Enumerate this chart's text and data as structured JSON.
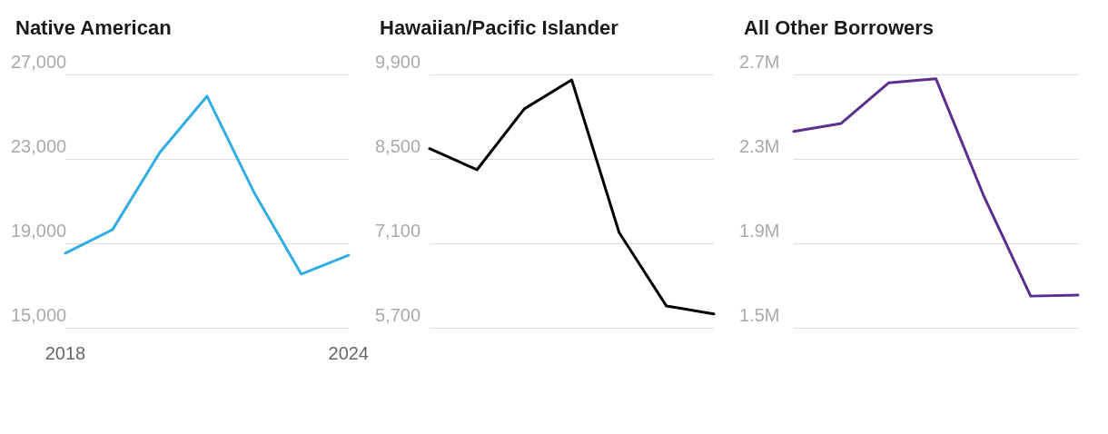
{
  "chart_data": [
    {
      "type": "line",
      "title": "Native American",
      "x": [
        2018,
        2019,
        2020,
        2021,
        2022,
        2023,
        2024
      ],
      "xlim": [
        2018,
        2024
      ],
      "xticks": [
        2018,
        2024
      ],
      "series": [
        {
          "color": "#31ade4",
          "values": [
            18530,
            19650,
            23300,
            25970,
            21400,
            17540,
            18440
          ]
        }
      ],
      "ylim": [
        15000,
        27000
      ],
      "yticks": [
        {
          "value": 15000,
          "label": "15,000"
        },
        {
          "value": 19000,
          "label": "19,000"
        },
        {
          "value": 23000,
          "label": "23,000"
        },
        {
          "value": 27000,
          "label": "27,000"
        }
      ],
      "grid": "y"
    },
    {
      "type": "line",
      "title": "Hawaiian/Pacific Islander",
      "categories": [
        null,
        null,
        null,
        null,
        null,
        null,
        null
      ],
      "tick_labels": "y",
      "series": [
        {
          "color": "#000000",
          "values": [
            8670,
            8320,
            9330,
            9810,
            7280,
            6060,
            5930
          ]
        }
      ],
      "ylim": [
        5700,
        9900
      ],
      "yticks": [
        {
          "value": 5700,
          "label": "5,700"
        },
        {
          "value": 7100,
          "label": "7,100"
        },
        {
          "value": 8500,
          "label": "8,500"
        },
        {
          "value": 9900,
          "label": "9,900"
        }
      ],
      "grid": "y"
    },
    {
      "type": "line",
      "title": "All Other Borrowers",
      "categories": [
        null,
        null,
        null,
        null,
        null,
        null,
        null
      ],
      "tick_labels": "y",
      "series": [
        {
          "color": "#5a2f8e",
          "values": [
            2430000,
            2468000,
            2660000,
            2680000,
            2130000,
            1650000,
            1655000
          ]
        }
      ],
      "ylim": [
        1500000,
        2700000
      ],
      "yticks": [
        {
          "value": 1500000,
          "label": "1.5M"
        },
        {
          "value": 1900000,
          "label": "1.9M"
        },
        {
          "value": 2300000,
          "label": "2.3M"
        },
        {
          "value": 2700000,
          "label": "2.7M"
        }
      ],
      "grid": "y"
    }
  ]
}
